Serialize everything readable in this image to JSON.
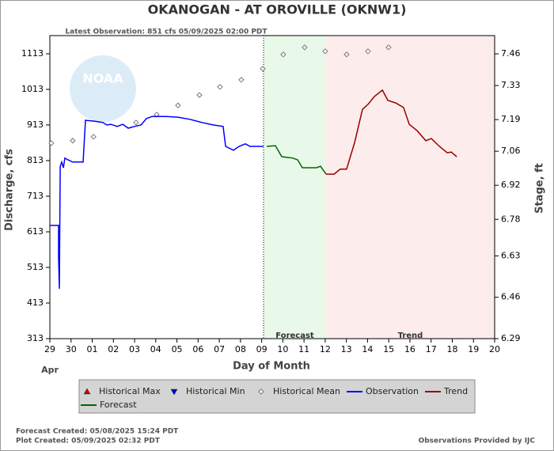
{
  "chart_data": {
    "type": "line",
    "title": "OKANOGAN - AT OROVILLE  (OKNW1)",
    "subtitle": "Latest Observation: 851 cfs 05/09/2025 02:00 PDT",
    "x_label": "Day of Month",
    "x_month_label": "Apr",
    "y_label": "Discharge, cfs",
    "y2_label": "Stage, ft",
    "logo_text": "NOAA",
    "xlim": [
      0,
      21
    ],
    "xticks": [
      {
        "value": 0,
        "label": "29"
      },
      {
        "value": 1,
        "label": "30"
      },
      {
        "value": 2,
        "label": "01"
      },
      {
        "value": 3,
        "label": "02"
      },
      {
        "value": 4,
        "label": "03"
      },
      {
        "value": 5,
        "label": "04"
      },
      {
        "value": 6,
        "label": "05"
      },
      {
        "value": 7,
        "label": "06"
      },
      {
        "value": 8,
        "label": "07"
      },
      {
        "value": 9,
        "label": "08"
      },
      {
        "value": 10,
        "label": "09"
      },
      {
        "value": 11,
        "label": "10"
      },
      {
        "value": 12,
        "label": "11"
      },
      {
        "value": 13,
        "label": "12"
      },
      {
        "value": 14,
        "label": "13"
      },
      {
        "value": 15,
        "label": "14"
      },
      {
        "value": 16,
        "label": "15"
      },
      {
        "value": 17,
        "label": "16"
      },
      {
        "value": 18,
        "label": "17"
      },
      {
        "value": 19,
        "label": "18"
      },
      {
        "value": 20,
        "label": "19"
      },
      {
        "value": 21,
        "label": "20"
      }
    ],
    "ylim": [
      313,
      1164
    ],
    "yticks": [
      313,
      413,
      513,
      613,
      713,
      813,
      913,
      1013,
      1113
    ],
    "y2lim": [
      6.29,
      7.535
    ],
    "y2ticks": [
      6.29,
      6.46,
      6.63,
      6.78,
      6.92,
      7.06,
      7.19,
      7.33,
      7.46
    ],
    "regions": [
      {
        "label": "Forecast",
        "start": 10.09,
        "end": 13.04,
        "color": "#e9f9e9"
      },
      {
        "label": "Trend",
        "start": 13.04,
        "end": 21,
        "color": "#fcecec"
      }
    ],
    "series": [
      {
        "name": "Historical Max",
        "color": "#cc0000",
        "marker": "triangle-up",
        "x": [],
        "values": []
      },
      {
        "name": "Historical Min",
        "color": "#0000cc",
        "marker": "triangle-down",
        "x": [],
        "values": []
      },
      {
        "name": "Historical Mean",
        "color": "#777777",
        "marker": "diamond",
        "x": [
          0.07,
          1.08,
          2.06,
          4.07,
          5.04,
          6.05,
          7.06,
          8.03,
          9.04,
          10.05,
          11.02,
          12.03,
          13.0,
          14.01,
          15.02,
          15.99
        ],
        "values": [
          862,
          869,
          880,
          920,
          942,
          968,
          997,
          1020,
          1040,
          1071,
          1111,
          1131,
          1120,
          1111,
          1120,
          1131
        ]
      },
      {
        "name": "Observation",
        "color": "#0000ff",
        "marker": "line",
        "x": [
          0,
          0.41,
          0.41,
          0.45,
          0.49,
          0.56,
          0.64,
          0.71,
          0.86,
          1.08,
          1.57,
          1.68,
          2.06,
          2.5,
          2.69,
          2.88,
          3.18,
          3.44,
          3.7,
          4.0,
          4.3,
          4.56,
          4.82,
          5.49,
          6.05,
          6.61,
          7.17,
          7.74,
          8.18,
          8.3,
          8.67,
          8.93,
          9.23,
          9.45,
          10.08
        ],
        "values": [
          631,
          631,
          542,
          453,
          797,
          809,
          793,
          820,
          815,
          809,
          809,
          926,
          924,
          920,
          913,
          915,
          909,
          915,
          904,
          909,
          913,
          931,
          937,
          937,
          935,
          929,
          920,
          913,
          909,
          853,
          842,
          853,
          860,
          853,
          853
        ]
      },
      {
        "name": "Trend",
        "color": "#990000",
        "marker": "line",
        "x": [
          13.04,
          13.42,
          13.71,
          14.01,
          14.39,
          14.76,
          15.02,
          15.32,
          15.7,
          15.96,
          16.33,
          16.7,
          16.97,
          17.34,
          17.75,
          18.01,
          18.39,
          18.76,
          18.95,
          19.21
        ],
        "values": [
          775,
          775,
          789,
          789,
          864,
          957,
          971,
          993,
          1011,
          982,
          975,
          962,
          915,
          897,
          869,
          875,
          853,
          835,
          837,
          824
        ]
      },
      {
        "name": "Forecast",
        "color": "#006600",
        "marker": "line",
        "x": [
          10.24,
          10.65,
          10.95,
          11.47,
          11.7,
          11.92,
          12.59,
          12.78,
          13.04
        ],
        "values": [
          853,
          855,
          824,
          820,
          815,
          793,
          793,
          797,
          775
        ]
      }
    ],
    "footer_left": [
      "Forecast Created: 05/08/2025 15:24 PDT",
      "Plot Created: 05/09/2025 02:32 PDT"
    ],
    "footer_right": "Observations Provided by IJC"
  }
}
